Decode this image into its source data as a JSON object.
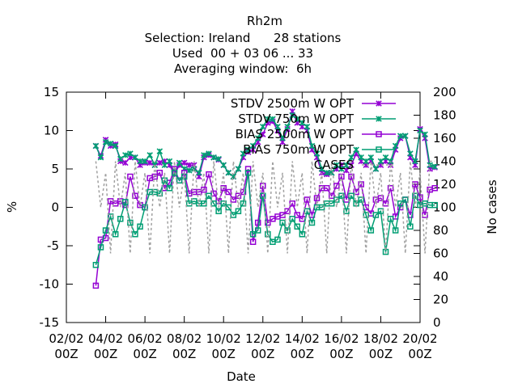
{
  "chart_data": {
    "type": "line",
    "title": "Rh2m",
    "subtitle_lines": [
      "Selection: Ireland      28 stations",
      "Used  00 + 03 06 ... 33",
      "Averaging window:  6h"
    ],
    "xlabel": "Date",
    "ylabel": "%",
    "y2label": "No cases",
    "ylim": [
      -15,
      15
    ],
    "y2lim": [
      0,
      200
    ],
    "yticks": [
      -15,
      -10,
      -5,
      0,
      5,
      10,
      15
    ],
    "y2ticks": [
      0,
      20,
      40,
      60,
      80,
      100,
      120,
      140,
      160,
      180,
      200
    ],
    "xlim": [
      0,
      18
    ],
    "xticks": [
      {
        "v": 0,
        "l1": "02/02",
        "l2": "00Z"
      },
      {
        "v": 2,
        "l1": "04/02",
        "l2": "00Z"
      },
      {
        "v": 4,
        "l1": "06/02",
        "l2": "00Z"
      },
      {
        "v": 6,
        "l1": "08/02",
        "l2": "00Z"
      },
      {
        "v": 8,
        "l1": "10/02",
        "l2": "00Z"
      },
      {
        "v": 10,
        "l1": "12/02",
        "l2": "00Z"
      },
      {
        "v": 12,
        "l1": "14/02",
        "l2": "00Z"
      },
      {
        "v": 14,
        "l1": "16/02",
        "l2": "00Z"
      },
      {
        "v": 16,
        "l1": "18/02",
        "l2": "00Z"
      },
      {
        "v": 18,
        "l1": "20/02",
        "l2": "00Z"
      }
    ],
    "grid": false,
    "legend_position": "top-right",
    "x_start": 1.5,
    "x_step": 0.25,
    "series": [
      {
        "name": "STDV 2500m",
        "legend_label": "STDV 2500m W OPT",
        "color": "#9400d3",
        "marker": "x",
        "axis": "y",
        "values": [
          8.0,
          6.7,
          8.8,
          8.0,
          8.2,
          6.0,
          5.8,
          6.5,
          6.5,
          5.5,
          5.8,
          5.8,
          5.5,
          5.8,
          6.0,
          5.5,
          4.3,
          5.5,
          5.8,
          5.5,
          5.5,
          4.0,
          6.5,
          6.8,
          6.5,
          6.2,
          5.5,
          4.5,
          4.0,
          5.0,
          6.5,
          7.2,
          7.5,
          8.5,
          9.5,
          11.0,
          11.2,
          10.0,
          8.5,
          10.2,
          12.5,
          11.0,
          10.5,
          10.0,
          7.5,
          6.5,
          4.5,
          4.3,
          4.5,
          5.0,
          5.5,
          4.8,
          5.5,
          7.0,
          6.0,
          5.5,
          6.0,
          5.0,
          5.5,
          6.0,
          5.5,
          7.5,
          9.0,
          9.3,
          6.5,
          5.5,
          10.2,
          9.0,
          5.0,
          5.2
        ]
      },
      {
        "name": "STDV 750m",
        "legend_label": "STDV 750m W OPT",
        "color": "#009e73",
        "marker": "x",
        "axis": "y",
        "values": [
          8.0,
          6.5,
          8.5,
          8.3,
          8.0,
          6.3,
          6.8,
          7.0,
          6.5,
          6.0,
          6.0,
          6.8,
          5.5,
          7.3,
          5.5,
          6.0,
          4.5,
          5.8,
          5.0,
          4.8,
          5.0,
          4.5,
          6.8,
          7.0,
          6.5,
          6.3,
          5.5,
          4.5,
          4.0,
          5.0,
          7.0,
          7.5,
          8.0,
          9.0,
          10.5,
          11.5,
          11.5,
          10.5,
          9.0,
          10.5,
          12.0,
          11.5,
          11.0,
          10.5,
          8.0,
          7.0,
          5.0,
          4.5,
          4.5,
          5.5,
          5.0,
          5.5,
          6.5,
          7.5,
          6.5,
          6.0,
          6.5,
          5.0,
          6.0,
          6.5,
          6.0,
          8.0,
          9.3,
          9.3,
          7.0,
          6.0,
          10.0,
          9.5,
          5.5,
          5.3
        ]
      },
      {
        "name": "BIAS 2500m",
        "legend_label": "BIAS 2500m W OPT",
        "color": "#9400d3",
        "marker": "square",
        "axis": "y",
        "values": [
          -10.2,
          -4.2,
          -4.0,
          0.8,
          0.5,
          0.8,
          0.3,
          4.0,
          1.5,
          0.3,
          0.0,
          3.8,
          4.0,
          4.5,
          2.5,
          3.2,
          5.0,
          3.5,
          4.5,
          1.8,
          2.0,
          2.0,
          2.3,
          4.3,
          1.8,
          0.8,
          2.5,
          2.0,
          1.0,
          1.5,
          2.0,
          5.0,
          -4.5,
          -2.0,
          2.8,
          -2.0,
          -1.5,
          -1.2,
          -1.0,
          -0.5,
          0.5,
          -1.0,
          -1.5,
          1.0,
          -1.0,
          1.2,
          2.5,
          2.5,
          1.5,
          2.8,
          4.0,
          1.0,
          4.0,
          2.0,
          3.0,
          0.0,
          -0.8,
          1.0,
          1.2,
          0.5,
          2.5,
          -1.2,
          0.0,
          1.0,
          -1.0,
          3.0,
          1.3,
          -1.0,
          2.3,
          2.5
        ]
      },
      {
        "name": "BIAS 750m",
        "legend_label": "BIAS 750m W OPT",
        "color": "#009e73",
        "marker": "square",
        "axis": "y",
        "values": [
          -7.5,
          -5.2,
          -3.0,
          -1.2,
          -3.5,
          -1.5,
          0.7,
          -2.0,
          -3.5,
          -2.5,
          0.0,
          2.0,
          2.0,
          1.8,
          3.5,
          2.5,
          4.5,
          3.5,
          4.0,
          0.5,
          0.8,
          0.5,
          0.5,
          1.5,
          0.5,
          -0.5,
          0.5,
          0.0,
          -1.0,
          -0.5,
          0.5,
          4.5,
          -3.5,
          -3.0,
          1.5,
          -3.5,
          -4.5,
          -4.2,
          -2.0,
          -3.0,
          -1.5,
          -2.5,
          -3.5,
          -0.5,
          -2.0,
          0.0,
          0.0,
          0.5,
          0.5,
          1.0,
          1.5,
          -0.5,
          1.5,
          0.5,
          1.0,
          -1.0,
          -3.0,
          -1.0,
          -0.5,
          -5.8,
          -1.5,
          -3.0,
          0.5,
          1.0,
          -2.5,
          1.5,
          0.3,
          0.5,
          0.3,
          0.3
        ]
      },
      {
        "name": "CASES",
        "legend_label": "CASES",
        "color": "#a0a0a0",
        "marker": "none",
        "dashed": true,
        "axis": "y2",
        "values": [
          140,
          100,
          130,
          60,
          140,
          100,
          130,
          60,
          140,
          100,
          130,
          60,
          140,
          100,
          130,
          60,
          140,
          100,
          130,
          60,
          140,
          100,
          130,
          60,
          140,
          100,
          130,
          60,
          140,
          100,
          130,
          60,
          140,
          100,
          130,
          60,
          140,
          100,
          130,
          60,
          140,
          100,
          130,
          60,
          140,
          100,
          130,
          60,
          140,
          100,
          130,
          60,
          140,
          100,
          130,
          60,
          140,
          100,
          130,
          60,
          140,
          100,
          130,
          60,
          140,
          100,
          130,
          60,
          140,
          140
        ]
      }
    ]
  }
}
